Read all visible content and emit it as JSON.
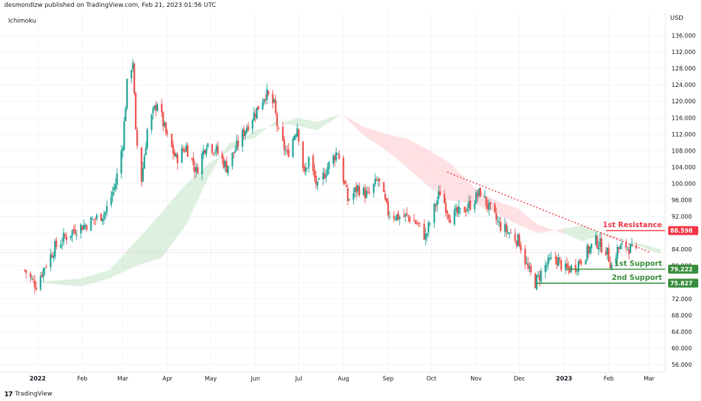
{
  "header": {
    "publisher": "desmondlzw published on TradingView.com, Feb 21, 2023 01:56 UTC"
  },
  "indicator_label": "Ichimoku",
  "currency": "USD",
  "footer": {
    "logo": "17",
    "brand": "TradingView"
  },
  "chart_data": {
    "type": "candlestick",
    "title": "",
    "y_ticks": [
      56.0,
      60.0,
      64.0,
      68.0,
      72.0,
      76.0,
      80.0,
      84.0,
      88.0,
      92.0,
      96.0,
      100.0,
      104.0,
      108.0,
      112.0,
      116.0,
      120.0,
      124.0,
      128.0,
      132.0,
      136.0
    ],
    "y_tick_labels": [
      "56.000",
      "60.000",
      "64.000",
      "68.000",
      "72.000",
      "76.000",
      "80.000",
      "84.000",
      "88.000",
      "92.000",
      "96.000",
      "100.000",
      "104.000",
      "108.000",
      "112.000",
      "116.000",
      "120.000",
      "124.000",
      "128.000",
      "132.000",
      "136.000"
    ],
    "ylim": [
      54.0,
      138.5
    ],
    "x_ticks": [
      "2022",
      "Feb",
      "Mar",
      "Apr",
      "May",
      "Jun",
      "Jul",
      "Aug",
      "Sep",
      "Oct",
      "Nov",
      "Dec",
      "2023",
      "Feb",
      "Mar"
    ],
    "price_path": [
      {
        "date": "2021-12-23",
        "close": 79
      },
      {
        "date": "2021-12-28",
        "close": 76.5
      },
      {
        "date": "2021-12-31",
        "close": 75.5
      },
      {
        "date": "2022-01-06",
        "close": 80
      },
      {
        "date": "2022-01-13",
        "close": 84.5
      },
      {
        "date": "2022-01-20",
        "close": 87
      },
      {
        "date": "2022-01-27",
        "close": 89
      },
      {
        "date": "2022-02-03",
        "close": 90
      },
      {
        "date": "2022-02-10",
        "close": 91.5
      },
      {
        "date": "2022-02-17",
        "close": 93
      },
      {
        "date": "2022-02-24",
        "close": 100
      },
      {
        "date": "2022-03-01",
        "close": 110
      },
      {
        "date": "2022-03-04",
        "close": 124
      },
      {
        "date": "2022-03-08",
        "close": 130
      },
      {
        "date": "2022-03-10",
        "close": 112
      },
      {
        "date": "2022-03-14",
        "close": 101
      },
      {
        "date": "2022-03-18",
        "close": 113
      },
      {
        "date": "2022-03-25",
        "close": 120
      },
      {
        "date": "2022-03-31",
        "close": 112
      },
      {
        "date": "2022-04-07",
        "close": 106
      },
      {
        "date": "2022-04-14",
        "close": 109
      },
      {
        "date": "2022-04-21",
        "close": 103
      },
      {
        "date": "2022-04-28",
        "close": 110
      },
      {
        "date": "2022-05-05",
        "close": 108
      },
      {
        "date": "2022-05-12",
        "close": 104
      },
      {
        "date": "2022-05-19",
        "close": 109
      },
      {
        "date": "2022-05-26",
        "close": 114
      },
      {
        "date": "2022-06-02",
        "close": 118
      },
      {
        "date": "2022-06-08",
        "close": 122
      },
      {
        "date": "2022-06-14",
        "close": 119
      },
      {
        "date": "2022-06-17",
        "close": 112
      },
      {
        "date": "2022-06-23",
        "close": 107
      },
      {
        "date": "2022-06-30",
        "close": 114
      },
      {
        "date": "2022-07-05",
        "close": 102
      },
      {
        "date": "2022-07-08",
        "close": 106
      },
      {
        "date": "2022-07-14",
        "close": 99
      },
      {
        "date": "2022-07-21",
        "close": 104
      },
      {
        "date": "2022-07-28",
        "close": 108
      },
      {
        "date": "2022-08-04",
        "close": 96
      },
      {
        "date": "2022-08-11",
        "close": 99
      },
      {
        "date": "2022-08-18",
        "close": 97
      },
      {
        "date": "2022-08-25",
        "close": 101
      },
      {
        "date": "2022-09-01",
        "close": 93
      },
      {
        "date": "2022-09-08",
        "close": 92
      },
      {
        "date": "2022-09-15",
        "close": 92
      },
      {
        "date": "2022-09-22",
        "close": 90
      },
      {
        "date": "2022-09-27",
        "close": 87
      },
      {
        "date": "2022-10-03",
        "close": 94
      },
      {
        "date": "2022-10-07",
        "close": 98
      },
      {
        "date": "2022-10-14",
        "close": 92
      },
      {
        "date": "2022-10-21",
        "close": 93
      },
      {
        "date": "2022-10-28",
        "close": 95
      },
      {
        "date": "2022-11-04",
        "close": 98
      },
      {
        "date": "2022-11-10",
        "close": 94
      },
      {
        "date": "2022-11-17",
        "close": 90
      },
      {
        "date": "2022-11-24",
        "close": 88
      },
      {
        "date": "2022-12-01",
        "close": 86
      },
      {
        "date": "2022-12-07",
        "close": 79
      },
      {
        "date": "2022-12-12",
        "close": 76
      },
      {
        "date": "2022-12-19",
        "close": 80
      },
      {
        "date": "2022-12-26",
        "close": 82
      },
      {
        "date": "2023-01-02",
        "close": 79
      },
      {
        "date": "2023-01-09",
        "close": 80
      },
      {
        "date": "2023-01-16",
        "close": 83
      },
      {
        "date": "2023-01-23",
        "close": 86
      },
      {
        "date": "2023-01-30",
        "close": 84
      },
      {
        "date": "2023-02-03",
        "close": 80
      },
      {
        "date": "2023-02-07",
        "close": 84
      },
      {
        "date": "2023-02-13",
        "close": 85
      },
      {
        "date": "2023-02-20",
        "close": 83
      }
    ],
    "cloud": {
      "span_a": [
        {
          "date": "2021-12-31",
          "v": 76
        },
        {
          "date": "2022-01-31",
          "v": 77
        },
        {
          "date": "2022-02-20",
          "v": 79
        },
        {
          "date": "2022-03-10",
          "v": 86
        },
        {
          "date": "2022-03-28",
          "v": 93
        },
        {
          "date": "2022-04-14",
          "v": 100
        },
        {
          "date": "2022-04-30",
          "v": 105
        },
        {
          "date": "2022-05-14",
          "v": 108
        },
        {
          "date": "2022-05-31",
          "v": 113
        },
        {
          "date": "2022-06-14",
          "v": 114
        },
        {
          "date": "2022-06-30",
          "v": 116
        },
        {
          "date": "2022-07-14",
          "v": 115
        },
        {
          "date": "2022-07-31",
          "v": 117
        },
        {
          "date": "2022-08-14",
          "v": 112
        },
        {
          "date": "2022-08-31",
          "v": 108
        },
        {
          "date": "2022-09-14",
          "v": 104
        },
        {
          "date": "2022-09-30",
          "v": 99
        },
        {
          "date": "2022-10-14",
          "v": 96
        },
        {
          "date": "2022-10-31",
          "v": 95
        },
        {
          "date": "2022-11-14",
          "v": 93
        },
        {
          "date": "2022-11-30",
          "v": 90
        },
        {
          "date": "2022-12-14",
          "v": 88
        },
        {
          "date": "2022-12-31",
          "v": 89
        },
        {
          "date": "2023-01-14",
          "v": 90
        },
        {
          "date": "2023-01-31",
          "v": 87
        },
        {
          "date": "2023-02-14",
          "v": 86
        },
        {
          "date": "2023-02-28",
          "v": 85
        },
        {
          "date": "2023-03-09",
          "v": 84
        }
      ],
      "span_b": [
        {
          "date": "2021-12-31",
          "v": 76
        },
        {
          "date": "2022-01-31",
          "v": 75
        },
        {
          "date": "2022-02-20",
          "v": 77
        },
        {
          "date": "2022-03-10",
          "v": 80
        },
        {
          "date": "2022-03-28",
          "v": 82
        },
        {
          "date": "2022-04-14",
          "v": 90
        },
        {
          "date": "2022-04-30",
          "v": 102
        },
        {
          "date": "2022-05-14",
          "v": 110
        },
        {
          "date": "2022-05-31",
          "v": 111
        },
        {
          "date": "2022-06-14",
          "v": 115
        },
        {
          "date": "2022-06-30",
          "v": 114
        },
        {
          "date": "2022-07-14",
          "v": 113
        },
        {
          "date": "2022-07-31",
          "v": 117
        },
        {
          "date": "2022-08-14",
          "v": 114
        },
        {
          "date": "2022-08-31",
          "v": 112
        },
        {
          "date": "2022-09-14",
          "v": 111
        },
        {
          "date": "2022-09-30",
          "v": 108
        },
        {
          "date": "2022-10-14",
          "v": 105
        },
        {
          "date": "2022-10-31",
          "v": 99
        },
        {
          "date": "2022-11-14",
          "v": 96
        },
        {
          "date": "2022-11-30",
          "v": 94
        },
        {
          "date": "2022-12-14",
          "v": 90
        },
        {
          "date": "2022-12-31",
          "v": 88
        },
        {
          "date": "2023-01-14",
          "v": 86
        },
        {
          "date": "2023-01-31",
          "v": 88
        },
        {
          "date": "2023-02-14",
          "v": 86
        },
        {
          "date": "2023-02-28",
          "v": 84
        },
        {
          "date": "2023-03-09",
          "v": 83
        }
      ]
    },
    "trendline": {
      "start": {
        "date": "2022-10-12",
        "v": 102.8
      },
      "end": {
        "date": "2023-03-02",
        "v": 83.3
      },
      "color": "#f23645",
      "style": "dotted"
    },
    "levels": [
      {
        "name": "1st Resistance",
        "value": 88.598,
        "label": "88.598",
        "color": "#f23645",
        "from": "2023-01-30"
      },
      {
        "name": "1st Support",
        "value": 79.222,
        "label": "79.222",
        "color": "#388e3c",
        "from": "2023-01-02"
      },
      {
        "name": "2nd Support",
        "value": 75.827,
        "label": "75.827",
        "color": "#388e3c",
        "from": "2022-12-12"
      }
    ],
    "last_price": 83.3,
    "colors": {
      "up": "#26a69a",
      "down": "#ef5350",
      "cloud_up": "#c8e6c9",
      "cloud_down": "#ffcdd2",
      "grid": "#f0f3fa",
      "axis": "#131722"
    }
  }
}
